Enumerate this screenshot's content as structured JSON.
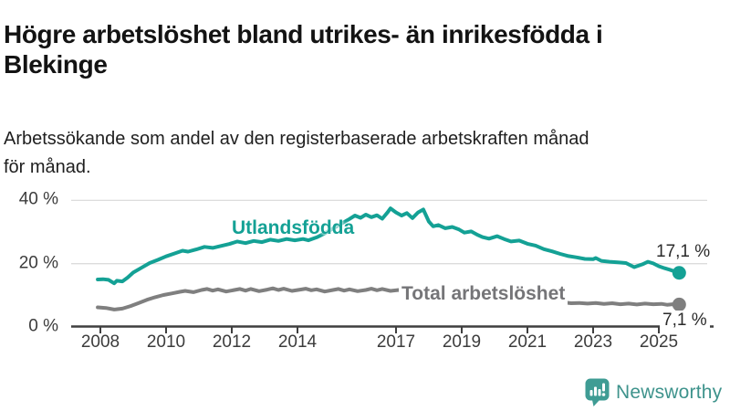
{
  "header": {
    "title_lines": [
      "Högre arbetslöshet bland utrikes- än inrikesfödda i",
      "Blekinge"
    ],
    "subtitle_lines": [
      "Arbetssökande som andel av den registerbaserade arbetskraften månad",
      "för månad."
    ]
  },
  "footer": {
    "brand": "Newsworthy",
    "brand_color": "#3e938c",
    "icon": "newsworthy-speech-bubble-bar-chart-icon"
  },
  "chart_data": {
    "type": "line",
    "title": "Högre arbetslöshet bland utrikes- än inrikesfödda i Blekinge",
    "subtitle": "Arbetssökande som andel av den registerbaserade arbetskraften månad för månad.",
    "grid": true,
    "grid_color": "#dcdcdc",
    "axis_color": "#3f3f3f",
    "legend_position": "inline-labels-on-lines",
    "x_axis": {
      "ticks": [
        2008,
        2010,
        2012,
        2014,
        2017,
        2019,
        2021,
        2023,
        2025
      ],
      "range": [
        2007.9,
        2026.6
      ],
      "unit": "year (monthly data)"
    },
    "y_axis": {
      "ticks": [
        {
          "value": 0,
          "label": "0 %"
        },
        {
          "value": 20,
          "label": "20 %"
        },
        {
          "value": 40,
          "label": "40 %"
        }
      ],
      "range": [
        0,
        44
      ],
      "unit": "%"
    },
    "series": [
      {
        "name": "Utlandsfödda",
        "color": "#14a195",
        "end_label": "17,1 %",
        "end_value": 17.1,
        "points": [
          [
            2007.92,
            15.0
          ],
          [
            2008.08,
            15.1
          ],
          [
            2008.25,
            14.9
          ],
          [
            2008.42,
            13.8
          ],
          [
            2008.5,
            14.6
          ],
          [
            2008.67,
            14.4
          ],
          [
            2008.83,
            15.6
          ],
          [
            2009.0,
            17.2
          ],
          [
            2009.25,
            18.7
          ],
          [
            2009.5,
            20.2
          ],
          [
            2009.75,
            21.2
          ],
          [
            2010.0,
            22.3
          ],
          [
            2010.25,
            23.2
          ],
          [
            2010.5,
            24.1
          ],
          [
            2010.67,
            23.8
          ],
          [
            2010.92,
            24.5
          ],
          [
            2011.17,
            25.3
          ],
          [
            2011.42,
            25.0
          ],
          [
            2011.67,
            25.6
          ],
          [
            2011.92,
            26.2
          ],
          [
            2012.17,
            27.0
          ],
          [
            2012.42,
            26.5
          ],
          [
            2012.67,
            27.2
          ],
          [
            2012.92,
            26.8
          ],
          [
            2013.17,
            27.6
          ],
          [
            2013.42,
            27.2
          ],
          [
            2013.67,
            27.8
          ],
          [
            2013.92,
            27.4
          ],
          [
            2014.17,
            27.8
          ],
          [
            2014.33,
            27.4
          ],
          [
            2014.58,
            28.3
          ],
          [
            2014.83,
            29.6
          ],
          [
            2015.08,
            31.1
          ],
          [
            2015.33,
            32.6
          ],
          [
            2015.58,
            34.1
          ],
          [
            2015.75,
            35.2
          ],
          [
            2015.92,
            34.5
          ],
          [
            2016.08,
            35.5
          ],
          [
            2016.25,
            34.7
          ],
          [
            2016.42,
            35.3
          ],
          [
            2016.58,
            34.2
          ],
          [
            2016.75,
            36.3
          ],
          [
            2016.83,
            37.5
          ],
          [
            2017.0,
            36.2
          ],
          [
            2017.17,
            35.2
          ],
          [
            2017.33,
            36.0
          ],
          [
            2017.5,
            34.4
          ],
          [
            2017.67,
            36.2
          ],
          [
            2017.83,
            37.1
          ],
          [
            2018.0,
            33.3
          ],
          [
            2018.13,
            31.8
          ],
          [
            2018.29,
            32.2
          ],
          [
            2018.5,
            31.2
          ],
          [
            2018.71,
            31.6
          ],
          [
            2018.92,
            30.8
          ],
          [
            2019.08,
            29.8
          ],
          [
            2019.29,
            30.2
          ],
          [
            2019.46,
            29.2
          ],
          [
            2019.63,
            28.4
          ],
          [
            2019.83,
            27.9
          ],
          [
            2020.08,
            28.7
          ],
          [
            2020.29,
            27.8
          ],
          [
            2020.5,
            27.0
          ],
          [
            2020.75,
            27.3
          ],
          [
            2021.0,
            26.3
          ],
          [
            2021.25,
            25.7
          ],
          [
            2021.5,
            24.6
          ],
          [
            2021.75,
            23.9
          ],
          [
            2022.0,
            23.1
          ],
          [
            2022.25,
            22.4
          ],
          [
            2022.5,
            22.0
          ],
          [
            2022.75,
            21.5
          ],
          [
            2023.0,
            21.4
          ],
          [
            2023.08,
            21.8
          ],
          [
            2023.25,
            20.9
          ],
          [
            2023.5,
            20.6
          ],
          [
            2023.75,
            20.4
          ],
          [
            2024.0,
            20.2
          ],
          [
            2024.25,
            18.9
          ],
          [
            2024.5,
            19.8
          ],
          [
            2024.67,
            20.6
          ],
          [
            2024.83,
            20.1
          ],
          [
            2025.0,
            19.2
          ],
          [
            2025.17,
            18.6
          ],
          [
            2025.33,
            18.1
          ],
          [
            2025.5,
            17.5
          ],
          [
            2025.62,
            17.1
          ]
        ]
      },
      {
        "name": "Total arbetslöshet",
        "color": "#7f7f7f",
        "end_label": "7,1 %",
        "end_value": 7.1,
        "points": [
          [
            2007.92,
            6.2
          ],
          [
            2008.17,
            6.0
          ],
          [
            2008.42,
            5.5
          ],
          [
            2008.67,
            5.8
          ],
          [
            2008.92,
            6.6
          ],
          [
            2009.17,
            7.6
          ],
          [
            2009.42,
            8.6
          ],
          [
            2009.67,
            9.4
          ],
          [
            2009.92,
            10.1
          ],
          [
            2010.17,
            10.6
          ],
          [
            2010.42,
            11.1
          ],
          [
            2010.58,
            11.4
          ],
          [
            2010.83,
            11.0
          ],
          [
            2011.08,
            11.7
          ],
          [
            2011.25,
            12.0
          ],
          [
            2011.42,
            11.5
          ],
          [
            2011.58,
            11.9
          ],
          [
            2011.83,
            11.2
          ],
          [
            2012.08,
            11.7
          ],
          [
            2012.25,
            12.0
          ],
          [
            2012.42,
            11.5
          ],
          [
            2012.58,
            12.0
          ],
          [
            2012.83,
            11.3
          ],
          [
            2013.08,
            11.8
          ],
          [
            2013.25,
            12.2
          ],
          [
            2013.42,
            11.7
          ],
          [
            2013.58,
            12.1
          ],
          [
            2013.83,
            11.4
          ],
          [
            2014.08,
            11.8
          ],
          [
            2014.25,
            12.1
          ],
          [
            2014.42,
            11.6
          ],
          [
            2014.58,
            11.9
          ],
          [
            2014.83,
            11.2
          ],
          [
            2015.08,
            11.7
          ],
          [
            2015.25,
            12.0
          ],
          [
            2015.42,
            11.5
          ],
          [
            2015.58,
            11.9
          ],
          [
            2015.83,
            11.3
          ],
          [
            2016.08,
            11.7
          ],
          [
            2016.25,
            12.1
          ],
          [
            2016.42,
            11.6
          ],
          [
            2016.58,
            12.0
          ],
          [
            2016.83,
            11.4
          ],
          [
            2017.08,
            11.7
          ],
          [
            2017.33,
            11.3
          ],
          [
            2017.58,
            11.6
          ],
          [
            2017.83,
            11.0
          ],
          [
            2018.08,
            10.9
          ],
          [
            2018.33,
            10.5
          ],
          [
            2018.58,
            10.7
          ],
          [
            2018.83,
            10.2
          ],
          [
            2019.08,
            10.1
          ],
          [
            2019.33,
            9.8
          ],
          [
            2019.58,
            10.0
          ],
          [
            2019.83,
            9.6
          ],
          [
            2020.08,
            9.7
          ],
          [
            2020.33,
            10.1
          ],
          [
            2020.58,
            9.8
          ],
          [
            2020.83,
            9.3
          ],
          [
            2021.08,
            8.9
          ],
          [
            2021.33,
            8.5
          ],
          [
            2021.58,
            8.3
          ],
          [
            2021.83,
            8.0
          ],
          [
            2022.08,
            7.8
          ],
          [
            2022.33,
            7.5
          ],
          [
            2022.58,
            7.6
          ],
          [
            2022.83,
            7.4
          ],
          [
            2023.08,
            7.6
          ],
          [
            2023.33,
            7.3
          ],
          [
            2023.58,
            7.5
          ],
          [
            2023.83,
            7.2
          ],
          [
            2024.08,
            7.4
          ],
          [
            2024.33,
            7.1
          ],
          [
            2024.58,
            7.4
          ],
          [
            2024.83,
            7.2
          ],
          [
            2025.08,
            7.3
          ],
          [
            2025.25,
            7.0
          ],
          [
            2025.42,
            7.2
          ],
          [
            2025.62,
            7.1
          ]
        ]
      }
    ]
  }
}
